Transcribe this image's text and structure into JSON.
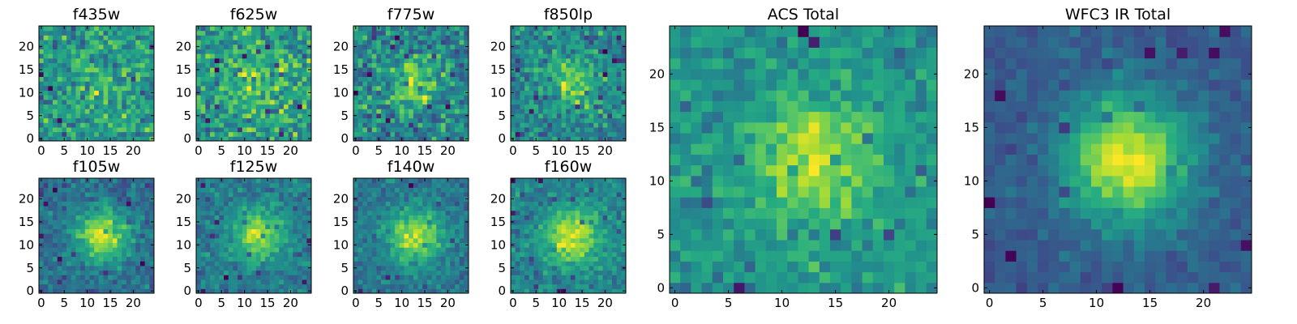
{
  "chart_data": [
    {
      "type": "heatmap",
      "title": "f435w",
      "grid_size": 25,
      "seed": 11,
      "center_strength": 0.08,
      "noise": 0.95,
      "xticks": [
        0,
        5,
        10,
        15,
        20
      ],
      "yticks": [
        0,
        5,
        10,
        15,
        20
      ],
      "xlim": [
        -0.5,
        24.5
      ],
      "ylim": [
        -0.5,
        24.5
      ],
      "colormap": "viridis"
    },
    {
      "type": "heatmap",
      "title": "f625w",
      "grid_size": 25,
      "seed": 23,
      "center_strength": 0.12,
      "noise": 0.95,
      "xticks": [
        0,
        5,
        10,
        15,
        20
      ],
      "yticks": [
        0,
        5,
        10,
        15,
        20
      ],
      "xlim": [
        -0.5,
        24.5
      ],
      "ylim": [
        -0.5,
        24.5
      ],
      "colormap": "viridis"
    },
    {
      "type": "heatmap",
      "title": "f775w",
      "grid_size": 25,
      "seed": 37,
      "center_strength": 0.2,
      "noise": 0.95,
      "xticks": [
        0,
        5,
        10,
        15,
        20
      ],
      "yticks": [
        0,
        5,
        10,
        15,
        20
      ],
      "xlim": [
        -0.5,
        24.5
      ],
      "ylim": [
        -0.5,
        24.5
      ],
      "colormap": "viridis"
    },
    {
      "type": "heatmap",
      "title": "f850lp",
      "grid_size": 25,
      "seed": 41,
      "center_strength": 0.22,
      "noise": 0.95,
      "xticks": [
        0,
        5,
        10,
        15,
        20
      ],
      "yticks": [
        0,
        5,
        10,
        15,
        20
      ],
      "xlim": [
        -0.5,
        24.5
      ],
      "ylim": [
        -0.5,
        24.5
      ],
      "colormap": "viridis"
    },
    {
      "type": "heatmap",
      "title": "f105w",
      "grid_size": 25,
      "seed": 53,
      "center_strength": 0.45,
      "noise": 0.8,
      "xticks": [
        0,
        5,
        10,
        15,
        20
      ],
      "yticks": [
        0,
        5,
        10,
        15,
        20
      ],
      "xlim": [
        -0.5,
        24.5
      ],
      "ylim": [
        -0.5,
        24.5
      ],
      "colormap": "viridis"
    },
    {
      "type": "heatmap",
      "title": "f125w",
      "grid_size": 25,
      "seed": 67,
      "center_strength": 0.4,
      "noise": 0.8,
      "xticks": [
        0,
        5,
        10,
        15,
        20
      ],
      "yticks": [
        0,
        5,
        10,
        15,
        20
      ],
      "xlim": [
        -0.5,
        24.5
      ],
      "ylim": [
        -0.5,
        24.5
      ],
      "colormap": "viridis"
    },
    {
      "type": "heatmap",
      "title": "f140w",
      "grid_size": 25,
      "seed": 79,
      "center_strength": 0.45,
      "noise": 0.8,
      "xticks": [
        0,
        5,
        10,
        15,
        20
      ],
      "yticks": [
        0,
        5,
        10,
        15,
        20
      ],
      "xlim": [
        -0.5,
        24.5
      ],
      "ylim": [
        -0.5,
        24.5
      ],
      "colormap": "viridis"
    },
    {
      "type": "heatmap",
      "title": "f160w",
      "grid_size": 25,
      "seed": 83,
      "center_strength": 0.45,
      "noise": 0.8,
      "xticks": [
        0,
        5,
        10,
        15,
        20
      ],
      "yticks": [
        0,
        5,
        10,
        15,
        20
      ],
      "xlim": [
        -0.5,
        24.5
      ],
      "ylim": [
        -0.5,
        24.5
      ],
      "colormap": "viridis"
    },
    {
      "type": "heatmap",
      "title": "ACS Total",
      "grid_size": 25,
      "seed": 97,
      "center_strength": 0.3,
      "noise": 0.75,
      "xticks": [
        0,
        5,
        10,
        15,
        20
      ],
      "yticks": [
        0,
        5,
        10,
        15,
        20
      ],
      "xlim": [
        -0.5,
        24.5
      ],
      "ylim": [
        -0.5,
        24.5
      ],
      "colormap": "viridis"
    },
    {
      "type": "heatmap",
      "title": "WFC3 IR Total",
      "grid_size": 25,
      "seed": 101,
      "center_strength": 0.6,
      "noise": 0.5,
      "xticks": [
        0,
        5,
        10,
        15,
        20
      ],
      "yticks": [
        0,
        5,
        10,
        15,
        20
      ],
      "xlim": [
        -0.5,
        24.5
      ],
      "ylim": [
        -0.5,
        24.5
      ],
      "colormap": "viridis"
    }
  ]
}
